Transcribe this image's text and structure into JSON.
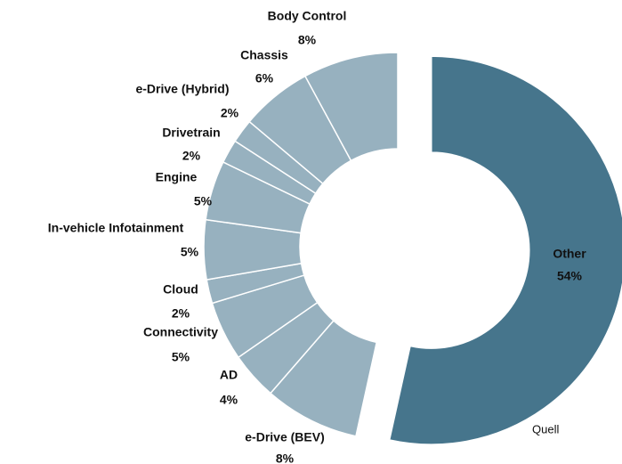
{
  "chart_data": {
    "type": "donut",
    "categories": [
      "Other",
      "e-Drive (BEV)",
      "AD",
      "Connectivity",
      "Cloud",
      "In-vehicle Infotainment",
      "Engine",
      "Drivetrain",
      "e-Drive (Hybrid)",
      "Chassis",
      "Body Control"
    ],
    "values": [
      54,
      8,
      4,
      5,
      2,
      5,
      5,
      2,
      2,
      6,
      8
    ],
    "value_labels": [
      "54%",
      "8%",
      "4%",
      "5%",
      "2%",
      "5%",
      "5%",
      "2%",
      "2%",
      "6%",
      "8%"
    ],
    "colors": [
      "#46758c",
      "#97b1bf",
      "#97b1bf",
      "#97b1bf",
      "#97b1bf",
      "#97b1bf",
      "#97b1bf",
      "#97b1bf",
      "#97b1bf",
      "#97b1bf",
      "#97b1bf"
    ],
    "source": "Quell"
  }
}
